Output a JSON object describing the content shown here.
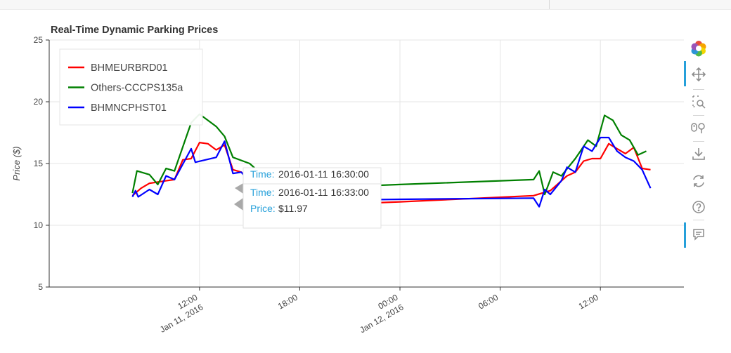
{
  "chart_data": {
    "type": "line",
    "title": "Real-Time Dynamic Parking Prices",
    "ylabel": "Price ($)",
    "xlabel": "",
    "ylim": [
      5,
      25
    ],
    "xlim": [
      "2016-01-11 03:00",
      "2016-01-12 17:00"
    ],
    "yticks": [
      5,
      10,
      15,
      20,
      25
    ],
    "xticks": [
      {
        "at": "2016-01-11 12:00",
        "line1": "12:00",
        "line2": "Jan 11, 2016"
      },
      {
        "at": "2016-01-11 18:00",
        "line1": "18:00",
        "line2": ""
      },
      {
        "at": "2016-01-12 00:00",
        "line1": "00:00",
        "line2": "Jan 12, 2016"
      },
      {
        "at": "2016-01-12 06:00",
        "line1": "06:00",
        "line2": ""
      },
      {
        "at": "2016-01-12 12:00",
        "line1": "12:00",
        "line2": ""
      }
    ],
    "grid": true,
    "legend_position": "top-left",
    "series": [
      {
        "name": "BHMEURBRD01",
        "color": "#ff0000",
        "points": [
          [
            "2016-01-11 07:59",
            12.4
          ],
          [
            "2016-01-11 08:30",
            13.0
          ],
          [
            "2016-01-11 09:00",
            13.4
          ],
          [
            "2016-01-11 09:30",
            13.5
          ],
          [
            "2016-01-11 10:00",
            13.6
          ],
          [
            "2016-01-11 10:30",
            13.7
          ],
          [
            "2016-01-11 11:00",
            15.3
          ],
          [
            "2016-01-11 11:30",
            15.4
          ],
          [
            "2016-01-11 12:00",
            16.7
          ],
          [
            "2016-01-11 12:30",
            16.6
          ],
          [
            "2016-01-11 13:00",
            16.1
          ],
          [
            "2016-01-11 13:30",
            16.5
          ],
          [
            "2016-01-11 14:00",
            14.5
          ],
          [
            "2016-01-11 14:30",
            14.3
          ],
          [
            "2016-01-11 15:00",
            13.7
          ],
          [
            "2016-01-11 15:30",
            13.7
          ],
          [
            "2016-01-11 16:00",
            12.3
          ],
          [
            "2016-01-11 16:33",
            11.5
          ],
          [
            "2016-01-12 00:00",
            11.9
          ],
          [
            "2016-01-12 08:00",
            12.4
          ],
          [
            "2016-01-12 09:00",
            12.8
          ],
          [
            "2016-01-12 10:00",
            14.0
          ],
          [
            "2016-01-12 10:30",
            14.3
          ],
          [
            "2016-01-12 11:00",
            15.2
          ],
          [
            "2016-01-12 11:30",
            15.4
          ],
          [
            "2016-01-12 12:00",
            15.4
          ],
          [
            "2016-01-12 12:30",
            16.6
          ],
          [
            "2016-01-12 13:00",
            16.2
          ],
          [
            "2016-01-12 13:30",
            15.8
          ],
          [
            "2016-01-12 14:00",
            16.3
          ],
          [
            "2016-01-12 14:30",
            14.6
          ],
          [
            "2016-01-12 15:00",
            14.5
          ]
        ]
      },
      {
        "name": "Others-CCCPS135a",
        "color": "#008000",
        "points": [
          [
            "2016-01-11 07:59",
            12.6
          ],
          [
            "2016-01-11 08:15",
            14.4
          ],
          [
            "2016-01-11 09:00",
            14.1
          ],
          [
            "2016-01-11 09:30",
            13.3
          ],
          [
            "2016-01-11 10:00",
            14.6
          ],
          [
            "2016-01-11 10:30",
            14.4
          ],
          [
            "2016-01-11 11:30",
            18.3
          ],
          [
            "2016-01-11 12:00",
            19.0
          ],
          [
            "2016-01-11 13:00",
            18.0
          ],
          [
            "2016-01-11 13:30",
            17.2
          ],
          [
            "2016-01-11 14:00",
            15.5
          ],
          [
            "2016-01-11 15:00",
            15.0
          ],
          [
            "2016-01-11 15:30",
            14.4
          ],
          [
            "2016-01-11 16:00",
            14.3
          ],
          [
            "2016-01-11 16:30",
            12.9
          ],
          [
            "2016-01-12 00:00",
            13.3
          ],
          [
            "2016-01-12 08:00",
            13.7
          ],
          [
            "2016-01-12 08:20",
            14.4
          ],
          [
            "2016-01-12 08:40",
            12.5
          ],
          [
            "2016-01-12 09:10",
            14.3
          ],
          [
            "2016-01-12 09:40",
            14.0
          ],
          [
            "2016-01-12 10:30",
            15.4
          ],
          [
            "2016-01-12 11:15",
            16.9
          ],
          [
            "2016-01-12 11:45",
            16.4
          ],
          [
            "2016-01-12 12:15",
            18.9
          ],
          [
            "2016-01-12 12:45",
            18.5
          ],
          [
            "2016-01-12 13:15",
            17.3
          ],
          [
            "2016-01-12 13:45",
            16.9
          ],
          [
            "2016-01-12 14:15",
            15.7
          ],
          [
            "2016-01-12 14:45",
            16.0
          ]
        ]
      },
      {
        "name": "BHMNCPHST01",
        "color": "#0000ff",
        "points": [
          [
            "2016-01-11 07:59",
            12.3
          ],
          [
            "2016-01-11 08:10",
            12.8
          ],
          [
            "2016-01-11 08:20",
            12.3
          ],
          [
            "2016-01-11 09:00",
            12.9
          ],
          [
            "2016-01-11 09:30",
            12.5
          ],
          [
            "2016-01-11 10:00",
            14.0
          ],
          [
            "2016-01-11 10:30",
            13.7
          ],
          [
            "2016-01-11 11:30",
            16.2
          ],
          [
            "2016-01-11 11:45",
            15.1
          ],
          [
            "2016-01-11 13:00",
            15.5
          ],
          [
            "2016-01-11 13:30",
            16.8
          ],
          [
            "2016-01-11 14:00",
            14.2
          ],
          [
            "2016-01-11 14:30",
            14.3
          ],
          [
            "2016-01-11 15:00",
            13.5
          ],
          [
            "2016-01-11 15:30",
            13.4
          ],
          [
            "2016-01-11 16:00",
            12.8
          ],
          [
            "2016-01-11 16:33",
            11.97
          ],
          [
            "2016-01-12 00:00",
            12.1
          ],
          [
            "2016-01-12 08:00",
            12.2
          ],
          [
            "2016-01-12 08:20",
            11.5
          ],
          [
            "2016-01-12 08:40",
            12.9
          ],
          [
            "2016-01-12 09:00",
            12.5
          ],
          [
            "2016-01-12 09:40",
            13.6
          ],
          [
            "2016-01-12 10:00",
            14.7
          ],
          [
            "2016-01-12 10:30",
            14.3
          ],
          [
            "2016-01-12 11:00",
            16.4
          ],
          [
            "2016-01-12 11:30",
            16.0
          ],
          [
            "2016-01-12 12:00",
            17.1
          ],
          [
            "2016-01-12 12:30",
            17.1
          ],
          [
            "2016-01-12 13:00",
            16.0
          ],
          [
            "2016-01-12 13:30",
            15.5
          ],
          [
            "2016-01-12 14:00",
            15.2
          ],
          [
            "2016-01-12 14:30",
            14.5
          ],
          [
            "2016-01-12 15:00",
            13.0
          ]
        ]
      }
    ],
    "tooltip": {
      "time_label": "Time:",
      "time_value": "2016-01-11 16:33:00",
      "price_label": "Price:",
      "price_value": "$11.97",
      "anchor": [
        "2016-01-11 16:33",
        11.97
      ],
      "ghost_time_value": "2016-01-11 16:30:00",
      "ghost_anchor": [
        "2016-01-11 16:30",
        12.9
      ]
    }
  },
  "toolbar": {
    "tools": [
      {
        "name": "bokeh-logo-icon",
        "active": false
      },
      {
        "name": "pan-icon",
        "active": true
      },
      {
        "name": "box-zoom-icon",
        "active": false
      },
      {
        "name": "wheel-zoom-icon",
        "active": false
      },
      {
        "name": "save-icon",
        "active": false
      },
      {
        "name": "reset-icon",
        "active": false
      },
      {
        "name": "help-icon",
        "active": false
      },
      {
        "name": "hover-icon",
        "active": true
      }
    ],
    "accent_color": "#26a0da"
  }
}
